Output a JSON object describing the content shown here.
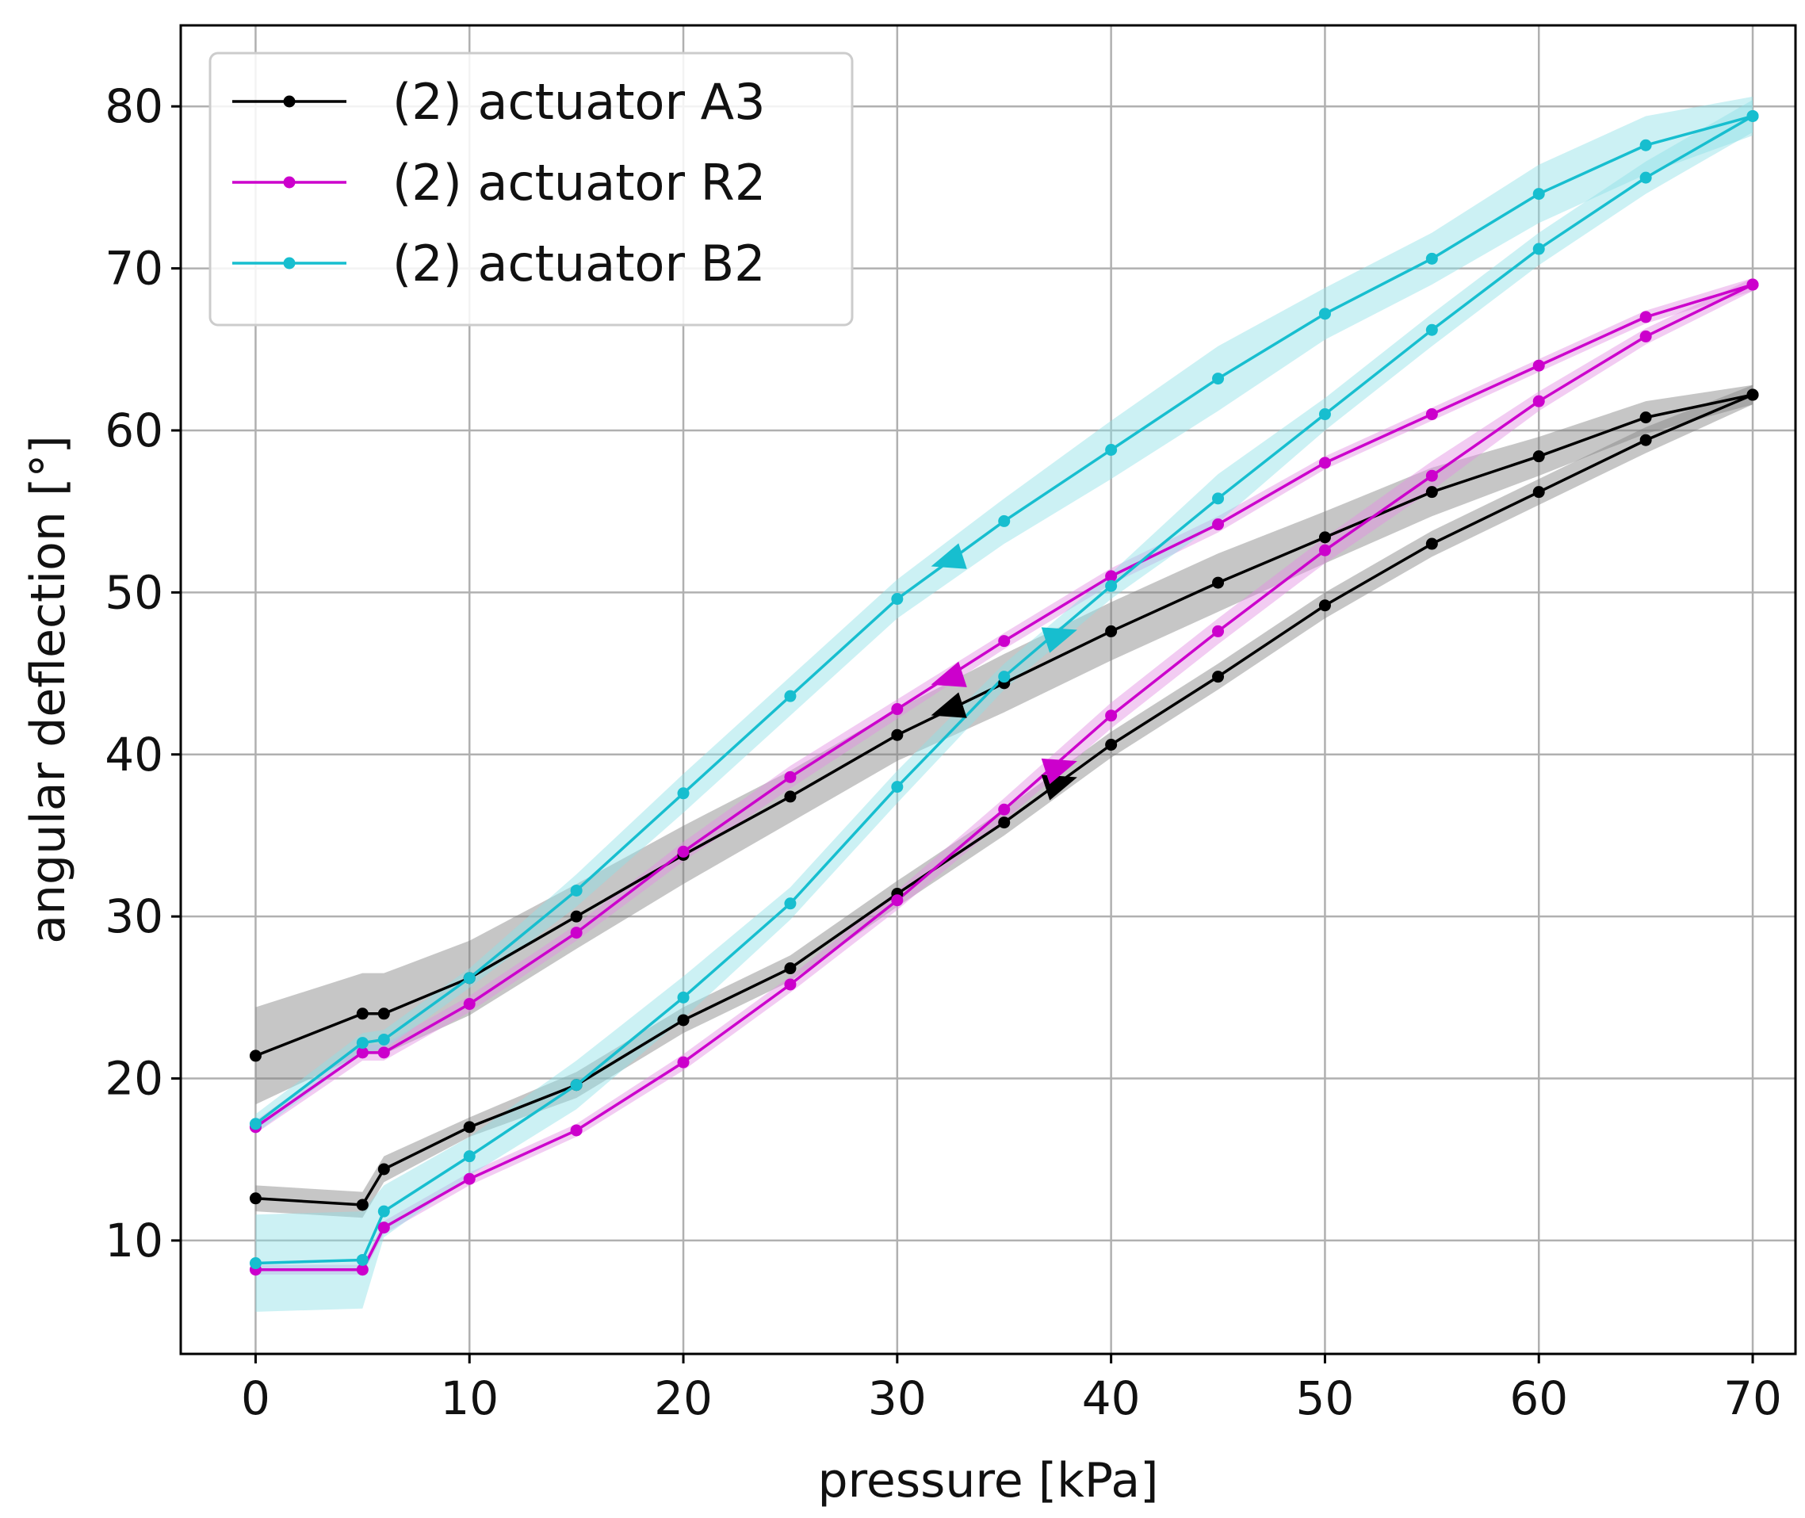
{
  "chart_data": {
    "type": "line",
    "title": "",
    "xlabel": "pressure [kPa]",
    "ylabel": "angular deflection [°]",
    "xlim": [
      -3.5,
      72
    ],
    "ylim": [
      3,
      85
    ],
    "xticks": [
      0,
      10,
      20,
      30,
      40,
      50,
      60,
      70
    ],
    "yticks": [
      10,
      20,
      30,
      40,
      50,
      60,
      70,
      80
    ],
    "grid": true,
    "legend_position": "top-left",
    "series": [
      {
        "name": "(2) actuator A3",
        "color": "#000000",
        "band_color": "#808080",
        "loading": {
          "x": [
            0,
            5,
            6,
            10,
            15,
            20,
            25,
            30,
            35,
            40,
            45,
            50,
            55,
            60,
            65,
            70
          ],
          "y": [
            12.6,
            12.2,
            14.4,
            17.0,
            19.6,
            23.6,
            26.8,
            31.4,
            35.8,
            40.6,
            44.8,
            49.2,
            53.0,
            56.2,
            59.4,
            62.2
          ],
          "err": [
            0.8,
            0.8,
            0.8,
            0.6,
            0.8,
            0.8,
            0.8,
            0.8,
            0.8,
            0.8,
            0.8,
            0.8,
            0.8,
            0.8,
            0.8,
            0.6
          ]
        },
        "unloading": {
          "x": [
            70,
            65,
            60,
            55,
            50,
            45,
            40,
            35,
            30,
            25,
            20,
            15,
            10,
            6,
            5,
            0
          ],
          "y": [
            62.2,
            60.8,
            58.4,
            56.2,
            53.4,
            50.6,
            47.6,
            44.4,
            41.2,
            37.4,
            33.8,
            30.0,
            26.2,
            24.0,
            24.0,
            21.4
          ],
          "err": [
            0.6,
            1.0,
            1.2,
            1.5,
            1.6,
            1.8,
            1.8,
            1.8,
            1.6,
            1.6,
            1.8,
            2.0,
            2.3,
            2.5,
            2.5,
            3.0
          ]
        },
        "arrows": [
          {
            "x": 32.5,
            "y": 42.8,
            "direction": "down-left"
          },
          {
            "x": 37.5,
            "y": 38.2,
            "direction": "up-right"
          }
        ]
      },
      {
        "name": "(2) actuator R2",
        "color": "#cc00cc",
        "band_color": "#e28ee2",
        "loading": {
          "x": [
            0,
            5,
            6,
            10,
            15,
            20,
            25,
            30,
            35,
            40,
            45,
            50,
            55,
            60,
            65,
            70
          ],
          "y": [
            8.2,
            8.2,
            10.8,
            13.8,
            16.8,
            21.0,
            25.8,
            31.0,
            36.6,
            42.4,
            47.6,
            52.6,
            57.2,
            61.8,
            65.8,
            69.0
          ],
          "err": [
            0.3,
            0.3,
            0.4,
            0.4,
            0.4,
            0.5,
            0.5,
            0.6,
            0.7,
            0.8,
            0.8,
            0.8,
            0.9,
            0.6,
            0.5,
            0.4
          ]
        },
        "unloading": {
          "x": [
            70,
            65,
            60,
            55,
            50,
            45,
            40,
            35,
            30,
            25,
            20,
            15,
            10,
            6,
            5,
            0
          ],
          "y": [
            69.0,
            67.0,
            64.0,
            61.0,
            58.0,
            54.2,
            51.0,
            47.0,
            42.8,
            38.6,
            34.0,
            29.0,
            24.6,
            21.6,
            21.6,
            17.0
          ],
          "err": [
            0.4,
            0.4,
            0.4,
            0.4,
            0.4,
            0.5,
            0.5,
            0.5,
            0.6,
            0.7,
            0.6,
            0.5,
            0.5,
            0.5,
            0.5,
            0.4
          ]
        },
        "arrows": [
          {
            "x": 32.5,
            "y": 44.7,
            "direction": "down-left"
          },
          {
            "x": 37.5,
            "y": 39.2,
            "direction": "up-right"
          }
        ]
      },
      {
        "name": "(2) actuator B2",
        "color": "#17becf",
        "band_color": "#8fdfe7",
        "loading": {
          "x": [
            0,
            5,
            6,
            10,
            15,
            20,
            25,
            30,
            35,
            40,
            45,
            50,
            55,
            60,
            65,
            70
          ],
          "y": [
            8.6,
            8.8,
            11.8,
            15.2,
            19.6,
            25.0,
            30.8,
            38.0,
            44.8,
            50.4,
            55.8,
            61.0,
            66.2,
            71.2,
            75.6,
            79.4
          ],
          "err": [
            3.0,
            3.0,
            1.6,
            1.2,
            1.5,
            1.3,
            1.0,
            1.0,
            0.8,
            0.8,
            1.5,
            1.0,
            1.0,
            1.0,
            1.0,
            1.0
          ]
        },
        "unloading": {
          "x": [
            70,
            65,
            60,
            55,
            50,
            45,
            40,
            35,
            30,
            25,
            20,
            15,
            10,
            6,
            5,
            0
          ],
          "y": [
            79.4,
            77.6,
            74.6,
            70.6,
            67.2,
            63.2,
            58.8,
            54.4,
            49.6,
            43.6,
            37.6,
            31.6,
            26.2,
            22.4,
            22.2,
            17.2
          ],
          "err": [
            1.2,
            1.8,
            1.8,
            1.6,
            1.6,
            2.0,
            1.8,
            1.4,
            1.2,
            1.2,
            1.2,
            1.0,
            0.6,
            0.6,
            0.6,
            0.6
          ]
        },
        "arrows": [
          {
            "x": 32.5,
            "y": 52.0,
            "direction": "down-left"
          },
          {
            "x": 37.5,
            "y": 47.3,
            "direction": "up-right"
          }
        ]
      }
    ]
  }
}
